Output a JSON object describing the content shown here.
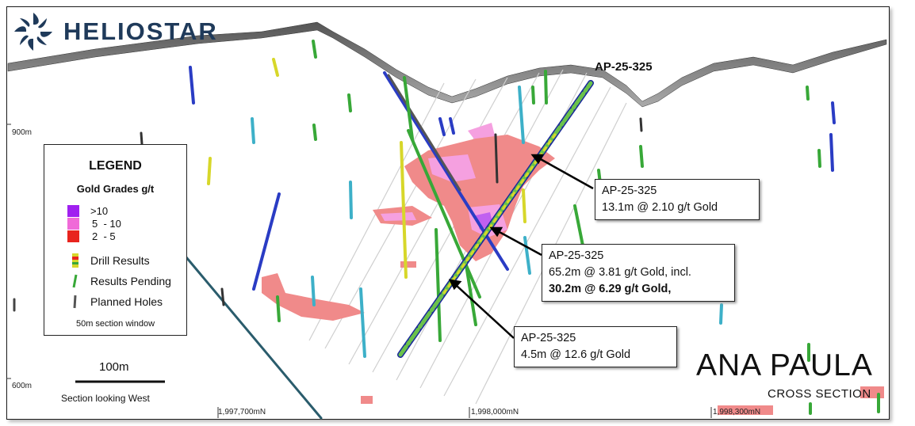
{
  "brand": {
    "name": "HELIOSTAR"
  },
  "hole_top_label": "AP-25-325",
  "legend": {
    "title": "LEGEND",
    "subtitle": "Gold Grades g/t",
    "grades": [
      {
        "label": ">10",
        "color": "#a020f0"
      },
      {
        "label": "5  - 10",
        "color": "#f06ad8"
      },
      {
        "label": "2  - 5",
        "color": "#e8241e"
      }
    ],
    "items": [
      "Drill Results",
      "Results Pending",
      "Planned Holes"
    ],
    "note": "50m section window"
  },
  "callouts": [
    {
      "hole": "AP-25-325",
      "line1": "13.1m @ 2.10 g/t Gold"
    },
    {
      "hole": "AP-25-325",
      "line1": "65.2m @ 3.81 g/t Gold, incl.",
      "line2": "30.2m @ 6.29 g/t Gold,"
    },
    {
      "hole": "AP-25-325",
      "line1": "4.5m @ 12.6 g/t Gold"
    }
  ],
  "scale_bar": {
    "label": "100m"
  },
  "section_note": "Section looking West",
  "elevations": [
    "900m",
    "600m"
  ],
  "northings": [
    "1,997,700mN",
    "1,998,000mN",
    "1,998,300mN"
  ],
  "title": {
    "main": "ANA PAULA",
    "sub": "CROSS SECTION"
  },
  "colors": {
    "brand": "#1f3a5a",
    "mineral_zone": "#f08a8a",
    "pink_zone": "#f5a0e0"
  }
}
